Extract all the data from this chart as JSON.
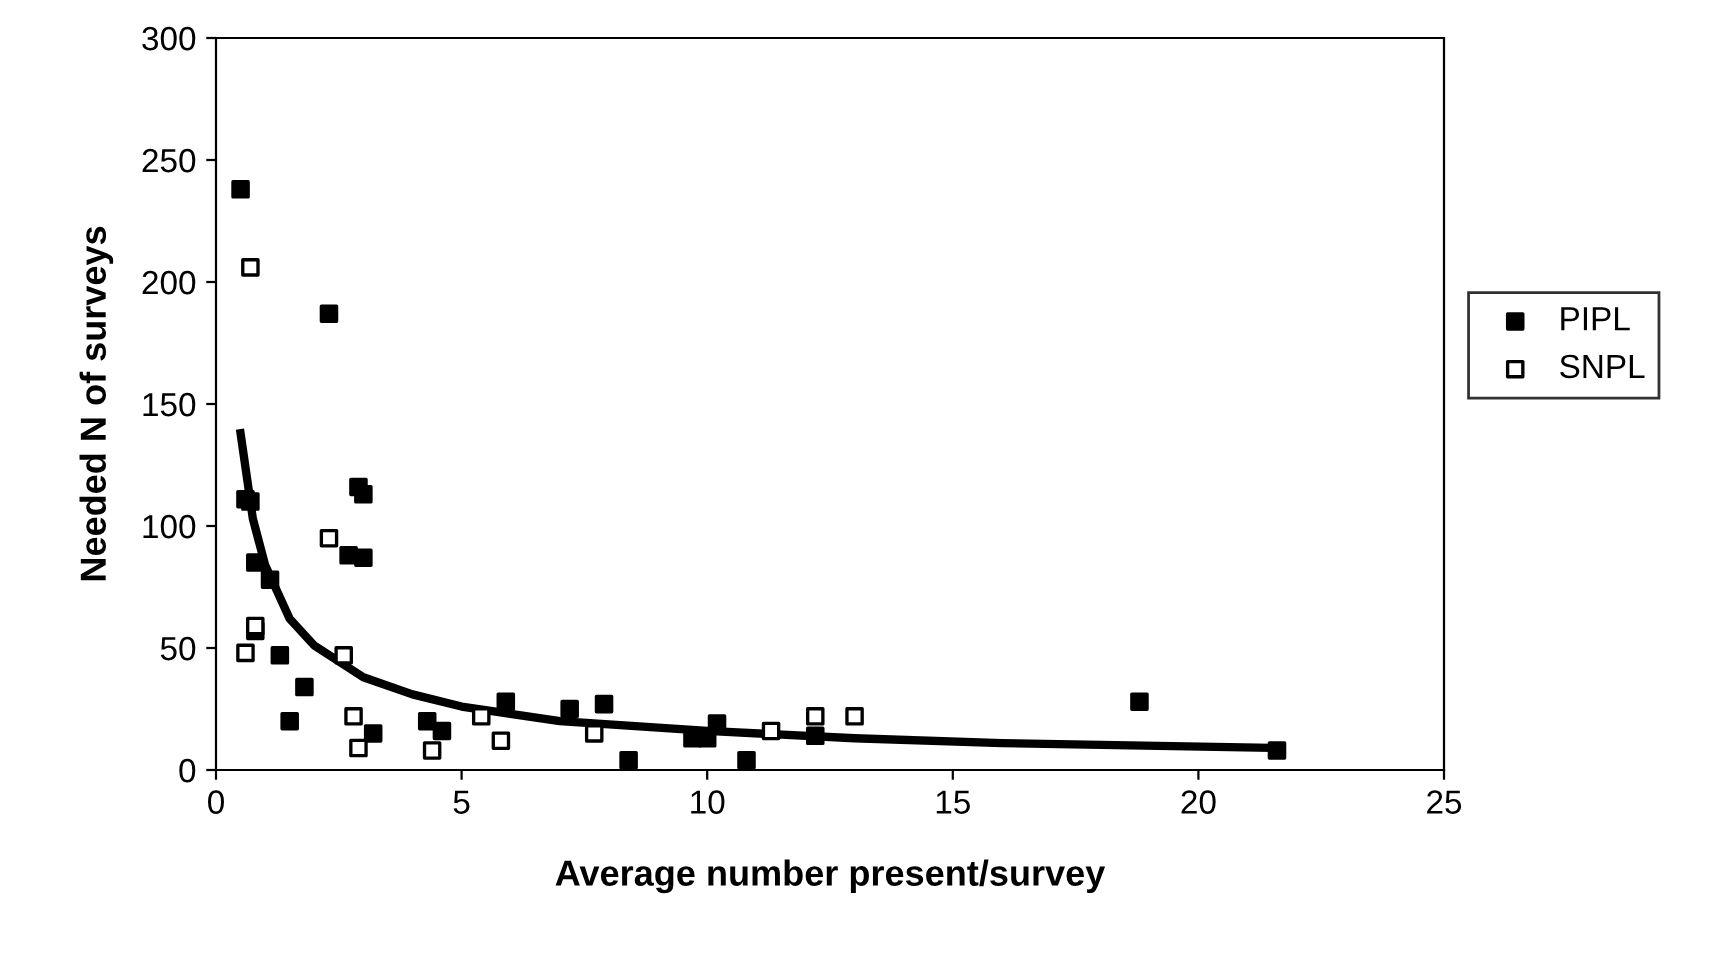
{
  "chart_data": {
    "type": "scatter",
    "xlabel": "Average number present/survey",
    "ylabel": "Needed N of surveys",
    "xlim": [
      0,
      25
    ],
    "xticks": [
      0,
      5,
      10,
      15,
      20,
      25
    ],
    "ylim": [
      0,
      300
    ],
    "yticks": [
      0,
      50,
      100,
      150,
      200,
      250,
      300
    ],
    "grid": false,
    "legend": "right",
    "marker": "square",
    "series": [
      {
        "name": "PIPL",
        "color": "#000000",
        "x": [
          0.5,
          0.6,
          0.7,
          0.8,
          0.8,
          1.1,
          1.3,
          1.5,
          1.8,
          2.3,
          2.7,
          2.9,
          3.0,
          3.0,
          3.2,
          4.3,
          4.6,
          5.9,
          7.2,
          7.9,
          8.4,
          9.7,
          10.0,
          10.2,
          10.8,
          12.2,
          18.8,
          21.6
        ],
        "values": [
          238,
          111,
          110,
          85,
          57,
          78,
          47,
          20,
          34,
          187,
          88,
          116,
          113,
          87,
          15,
          20,
          16,
          28,
          25,
          27,
          4,
          13,
          13,
          19,
          4,
          14,
          28,
          8
        ]
      },
      {
        "name": "SNPL",
        "color": "#ffffff",
        "x": [
          0.7,
          0.6,
          0.8,
          2.3,
          2.6,
          2.8,
          2.9,
          4.4,
          5.4,
          5.8,
          7.7,
          11.3,
          12.2,
          13.0
        ],
        "values": [
          206,
          48,
          59,
          95,
          47,
          22,
          9,
          8,
          22,
          12,
          15,
          16,
          22,
          22
        ]
      },
      {
        "type": "line",
        "marker": "none",
        "color": "#000000",
        "x": [
          0.5,
          0.75,
          1,
          1.5,
          2,
          3,
          4,
          5,
          7,
          10,
          13,
          16,
          21.6
        ],
        "values": [
          138,
          103,
          84,
          62,
          51,
          38,
          31,
          26,
          20,
          16,
          13,
          11,
          9
        ]
      }
    ]
  }
}
